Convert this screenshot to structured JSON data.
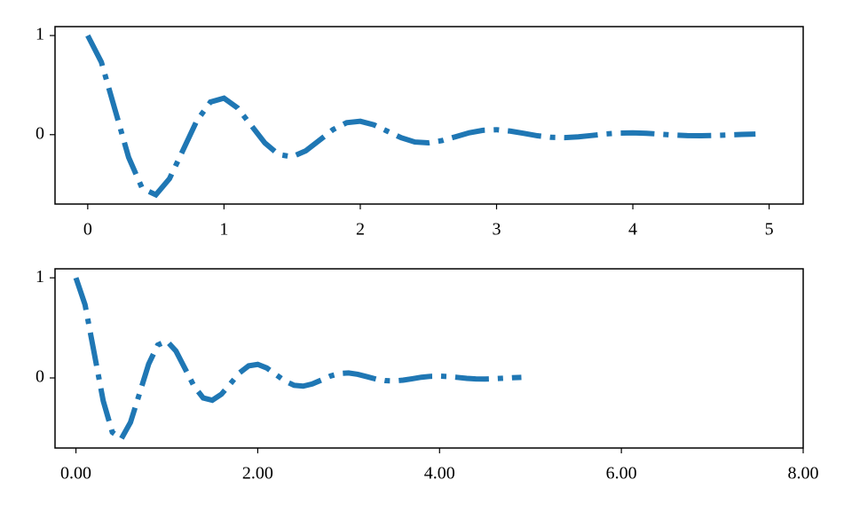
{
  "chart_data": [
    {
      "type": "line",
      "x": [
        0,
        0.1,
        0.2,
        0.3,
        0.4,
        0.5,
        0.6,
        0.7,
        0.8,
        0.9,
        1,
        1.1,
        1.2,
        1.3,
        1.4,
        1.5,
        1.6,
        1.7,
        1.8,
        1.9,
        2,
        2.1,
        2.2,
        2.3,
        2.4,
        2.5,
        2.6,
        2.7,
        2.8,
        2.9,
        3,
        3.1,
        3.2,
        3.3,
        3.4,
        3.5,
        3.6,
        3.7,
        3.8,
        3.9,
        4,
        4.1,
        4.2,
        4.3,
        4.4,
        4.5,
        4.6,
        4.7,
        4.8,
        4.9
      ],
      "series": [
        {
          "color": "#1f77b4",
          "values": [
            1,
            0.732,
            0.253,
            -0.229,
            -0.542,
            -0.607,
            -0.444,
            -0.154,
            0.139,
            0.329,
            0.368,
            0.269,
            0.093,
            -0.084,
            -0.2,
            -0.223,
            -0.163,
            -0.057,
            0.051,
            0.121,
            0.135,
            0.099,
            0.034,
            -0.031,
            -0.074,
            -0.082,
            -0.06,
            -0.021,
            0.019,
            0.044,
            0.05,
            0.036,
            0.013,
            -0.011,
            -0.027,
            -0.03,
            -0.022,
            -0.008,
            0.007,
            0.016,
            0.018,
            0.014,
            0.005,
            -0.004,
            -0.01,
            -0.011,
            -0.008,
            -0.003,
            0.002,
            0.006
          ]
        }
      ],
      "xlim": [
        -0.24,
        5.25
      ],
      "xticks": [
        0,
        1,
        2,
        3,
        4,
        5
      ],
      "ylim": [
        -0.7,
        1.09
      ],
      "yticks": [
        0,
        1
      ]
    },
    {
      "type": "line",
      "x": [
        0,
        0.1,
        0.2,
        0.3,
        0.4,
        0.5,
        0.6,
        0.7,
        0.8,
        0.9,
        1,
        1.1,
        1.2,
        1.3,
        1.4,
        1.5,
        1.6,
        1.7,
        1.8,
        1.9,
        2,
        2.1,
        2.2,
        2.3,
        2.4,
        2.5,
        2.6,
        2.7,
        2.8,
        2.9,
        3,
        3.1,
        3.2,
        3.3,
        3.4,
        3.5,
        3.6,
        3.7,
        3.8,
        3.9,
        4,
        4.1,
        4.2,
        4.3,
        4.4,
        4.5,
        4.6,
        4.7,
        4.8,
        4.9
      ],
      "series": [
        {
          "color": "#1f77b4",
          "values": [
            1,
            0.732,
            0.253,
            -0.229,
            -0.542,
            -0.607,
            -0.444,
            -0.154,
            0.139,
            0.329,
            0.368,
            0.269,
            0.093,
            -0.084,
            -0.2,
            -0.223,
            -0.163,
            -0.057,
            0.051,
            0.121,
            0.135,
            0.099,
            0.034,
            -0.031,
            -0.074,
            -0.082,
            -0.06,
            -0.021,
            0.019,
            0.044,
            0.05,
            0.036,
            0.013,
            -0.011,
            -0.027,
            -0.03,
            -0.022,
            -0.008,
            0.007,
            0.016,
            0.018,
            0.014,
            0.005,
            -0.004,
            -0.01,
            -0.011,
            -0.008,
            -0.003,
            0.002,
            0.006
          ]
        }
      ],
      "xlim": [
        -0.23,
        8.0
      ],
      "xticks": [
        {
          "value": 0,
          "label": "0.00"
        },
        {
          "value": 2,
          "label": "2.00"
        },
        {
          "value": 4,
          "label": "4.00"
        },
        {
          "value": 6,
          "label": "6.00"
        },
        {
          "value": 8,
          "label": "8.00"
        }
      ],
      "ylim": [
        -0.7,
        1.09
      ],
      "yticks": [
        0,
        1
      ]
    }
  ]
}
